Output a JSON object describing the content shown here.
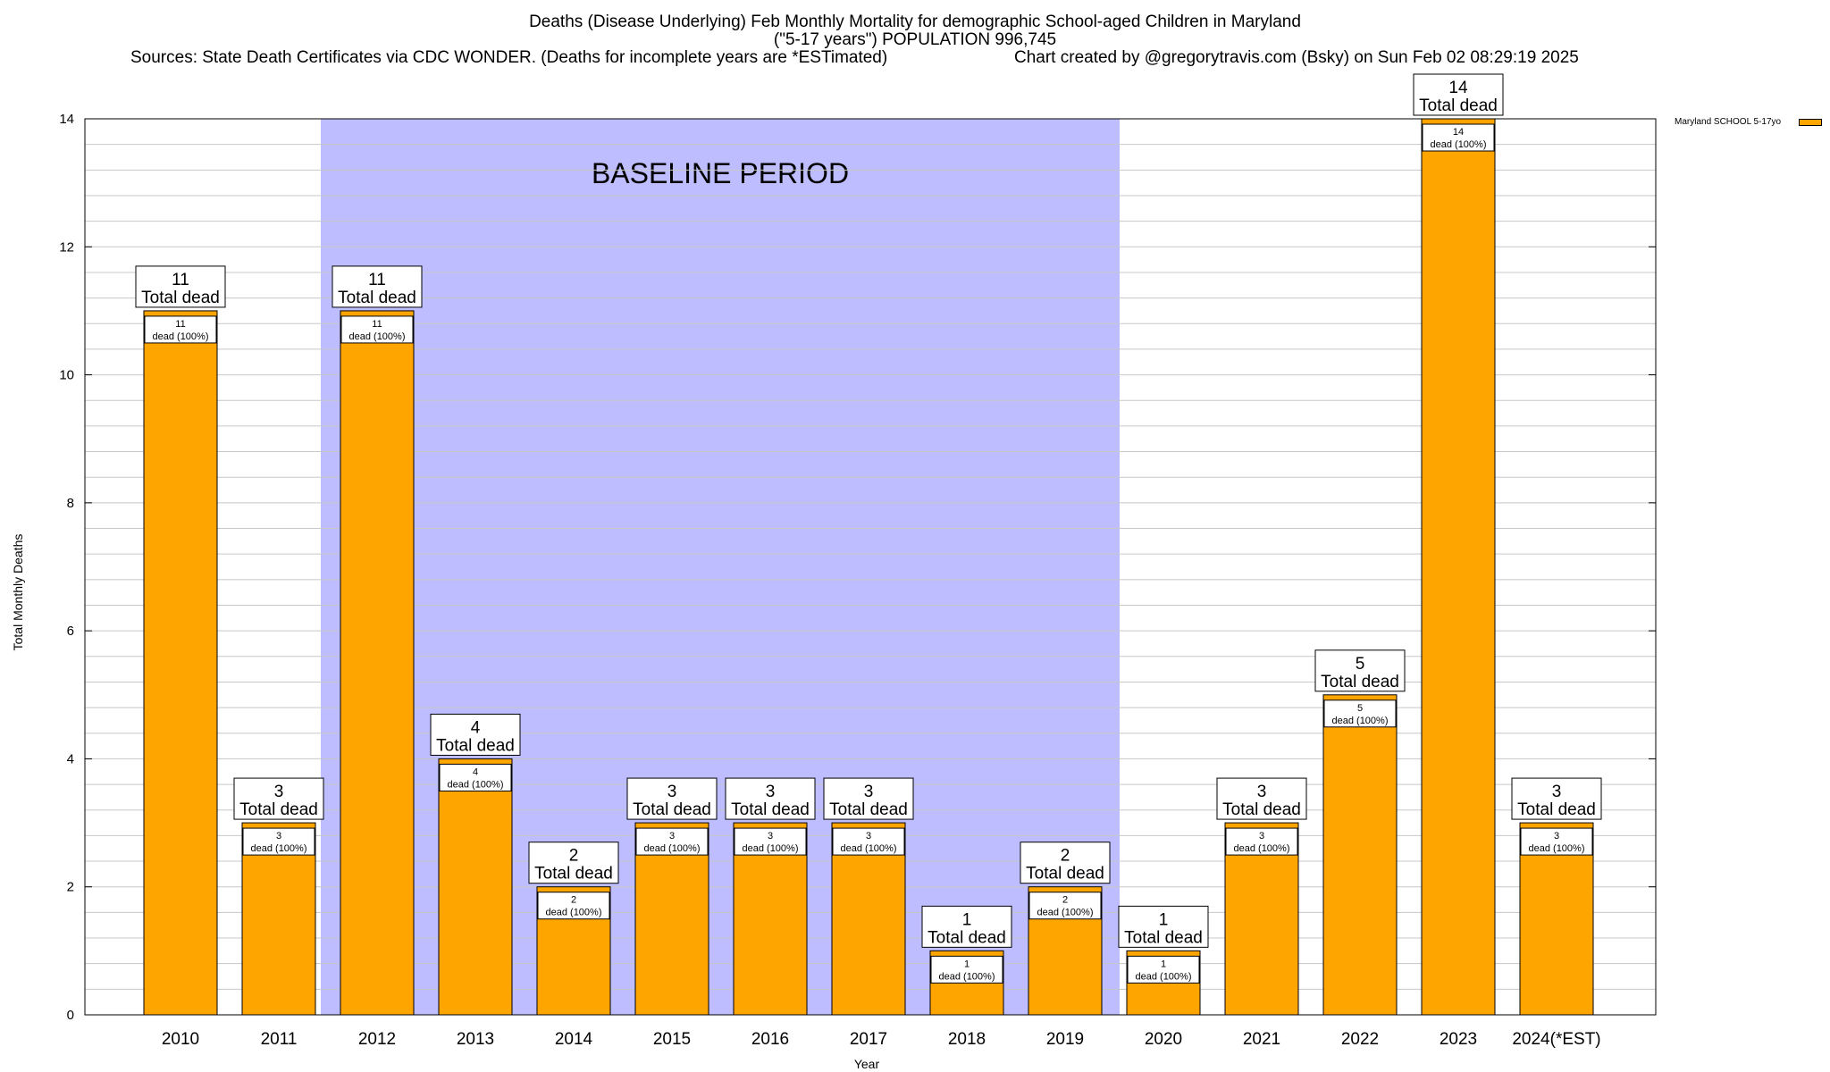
{
  "header": {
    "title_line1": "Deaths (Disease Underlying) Feb Monthly Mortality for demographic School-aged Children in Maryland",
    "title_line2": "(\"5-17 years\") POPULATION 996,745",
    "sources": "Sources: State Death Certificates via CDC WONDER. (Deaths for incomplete years are *ESTimated)",
    "credit": "Chart created by @gregorytravis.com (Bsky) on Sun Feb 02 08:29:19 2025"
  },
  "legend": {
    "label": "Maryland SCHOOL 5-17yo"
  },
  "colors": {
    "bar": "#FFA500",
    "baseline_band": "#BDBDFF",
    "grid": "#C8C8C8"
  },
  "chart_data": {
    "type": "bar",
    "title": "Deaths (Disease Underlying) Feb Monthly Mortality for demographic School-aged Children in Maryland",
    "xlabel": "Year",
    "ylabel": "Total Monthly Deaths",
    "ylim": [
      0,
      14
    ],
    "y_ticks": [
      0,
      2,
      4,
      6,
      8,
      10,
      12,
      14
    ],
    "grid": true,
    "legend_position": "top-right",
    "categories": [
      "2010",
      "2011",
      "2012",
      "2013",
      "2014",
      "2015",
      "2016",
      "2017",
      "2018",
      "2019",
      "2020",
      "2021",
      "2022",
      "2023",
      "2024(*EST)"
    ],
    "series": [
      {
        "name": "Maryland SCHOOL 5-17yo",
        "values": [
          11,
          3,
          11,
          4,
          2,
          3,
          3,
          3,
          1,
          2,
          1,
          3,
          5,
          14,
          3
        ]
      }
    ],
    "total_label_text": "Total dead",
    "inner_label_text": "dead (100%)",
    "annotation": {
      "text": "BASELINE PERIOD",
      "from": "2012",
      "to": "2019"
    }
  }
}
